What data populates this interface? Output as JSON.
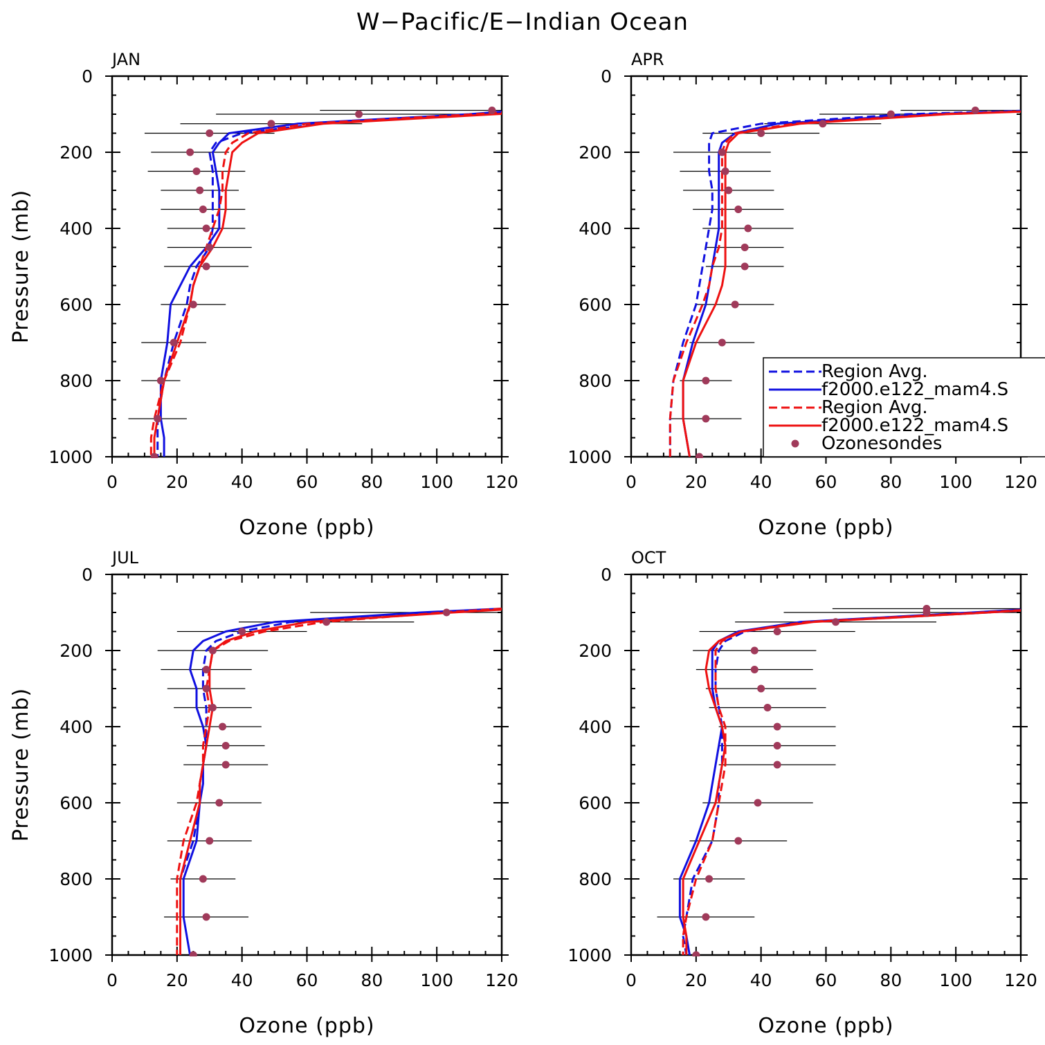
{
  "figure_title": "W−Pacific/E−Indian Ocean",
  "colors": {
    "blue": "#1010e0",
    "red": "#ee1111",
    "obs": "#a03a5a",
    "axis": "#000000"
  },
  "legend": [
    {
      "label": "Region Avg.",
      "color": "#1010e0",
      "style": "dashed"
    },
    {
      "label": "f2000.e122_mam4.S",
      "color": "#1010e0",
      "style": "solid"
    },
    {
      "label": "Region Avg.",
      "color": "#ee1111",
      "style": "dashed"
    },
    {
      "label": "f2000.e122_mam4.S",
      "color": "#ee1111",
      "style": "solid"
    },
    {
      "label": "Ozonesondes",
      "color": "#a03a5a",
      "style": "marker"
    }
  ],
  "chart_data": [
    {
      "type": "line",
      "title": "JAN",
      "xlabel": "Ozone (ppb)",
      "ylabel": "Pressure (mb)",
      "xlim": [
        0,
        120
      ],
      "ylim": [
        0,
        1000
      ],
      "y_reversed": true,
      "xticks": [
        "0",
        "20",
        "40",
        "60",
        "80",
        "100",
        "120"
      ],
      "yticks": [
        "0",
        "200",
        "400",
        "600",
        "800",
        "1000"
      ],
      "pressure": [
        90,
        100,
        125,
        150,
        175,
        200,
        250,
        300,
        350,
        400,
        450,
        500,
        550,
        600,
        700,
        800,
        900,
        950,
        1000
      ],
      "series": [
        {
          "name": "Region Avg.",
          "color": "#1010e0",
          "style": "dashed",
          "values": [
            135,
            115,
            64,
            40,
            32,
            30,
            31,
            31,
            31,
            31,
            30,
            26,
            24,
            23,
            19,
            16,
            14,
            14,
            14
          ]
        },
        {
          "name": "f2000.e122_mam4.S",
          "color": "#1010e0",
          "style": "solid",
          "values": [
            125,
            110,
            57,
            36,
            33,
            31,
            32,
            33,
            33,
            33,
            29,
            24,
            21,
            18,
            17,
            15,
            15,
            16,
            16
          ]
        },
        {
          "name": "Region Avg.",
          "color": "#ee1111",
          "style": "dashed",
          "values": [
            130,
            112,
            60,
            42,
            37,
            35,
            34,
            34,
            33,
            31,
            29,
            27,
            25,
            24,
            21,
            16,
            13,
            12,
            12
          ]
        },
        {
          "name": "f2000.e122_mam4.S",
          "color": "#ee1111",
          "style": "solid",
          "values": [
            140,
            118,
            65,
            45,
            40,
            37,
            36,
            35,
            35,
            34,
            31,
            27,
            25,
            24,
            20,
            16,
            14,
            13,
            13
          ]
        }
      ],
      "obs": {
        "name": "Ozonesondes",
        "pressure": [
          90,
          100,
          125,
          150,
          200,
          250,
          300,
          350,
          400,
          450,
          500,
          600,
          700,
          800,
          900,
          1000
        ],
        "values": [
          117,
          76,
          49,
          30,
          24,
          26,
          27,
          28,
          29,
          30,
          29,
          25,
          19,
          15,
          14,
          13
        ],
        "err": [
          53,
          44,
          28,
          20,
          12,
          15,
          12,
          13,
          12,
          13,
          13,
          10,
          10,
          6,
          9,
          10
        ]
      }
    },
    {
      "type": "line",
      "title": "APR",
      "xlabel": "Ozone (ppb)",
      "ylabel": "",
      "xlim": [
        0,
        120
      ],
      "ylim": [
        0,
        1000
      ],
      "y_reversed": true,
      "xticks": [
        "0",
        "20",
        "40",
        "60",
        "80",
        "100",
        "120"
      ],
      "yticks": [
        "0",
        "200",
        "400",
        "600",
        "800",
        "1000"
      ],
      "pressure": [
        90,
        100,
        125,
        150,
        175,
        200,
        250,
        300,
        350,
        400,
        450,
        500,
        550,
        600,
        700,
        800,
        900,
        950,
        1000
      ],
      "series": [
        {
          "name": "Region Avg.",
          "color": "#1010e0",
          "style": "dashed",
          "values": [
            125,
            85,
            40,
            25,
            24,
            24,
            24,
            25,
            25,
            24,
            23,
            22,
            21,
            20,
            16,
            13,
            12,
            12,
            12
          ]
        },
        {
          "name": "f2000.e122_mam4.S",
          "color": "#1010e0",
          "style": "solid",
          "values": [
            128,
            92,
            45,
            32,
            28,
            27,
            27,
            27,
            27,
            27,
            26,
            25,
            24,
            23,
            19,
            16,
            16,
            17,
            18
          ]
        },
        {
          "name": "Region Avg.",
          "color": "#ee1111",
          "style": "dashed",
          "values": [
            130,
            95,
            50,
            32,
            29,
            28,
            28,
            28,
            28,
            28,
            27,
            25,
            24,
            22,
            17,
            13,
            12,
            12,
            12
          ]
        },
        {
          "name": "f2000.e122_mam4.S",
          "color": "#ee1111",
          "style": "solid",
          "values": [
            132,
            97,
            52,
            33,
            30,
            29,
            29,
            29,
            29,
            29,
            29,
            29,
            28,
            26,
            20,
            16,
            16,
            17,
            18
          ]
        }
      ],
      "obs": {
        "name": "Ozonesondes",
        "pressure": [
          90,
          100,
          125,
          150,
          200,
          250,
          300,
          350,
          400,
          450,
          500,
          600,
          700,
          800,
          900,
          1000
        ],
        "values": [
          106,
          80,
          59,
          40,
          28,
          29,
          30,
          33,
          36,
          35,
          35,
          32,
          28,
          23,
          23,
          21
        ],
        "err": [
          23,
          22,
          18,
          18,
          15,
          14,
          14,
          14,
          14,
          12,
          12,
          12,
          10,
          8,
          11,
          13
        ]
      }
    },
    {
      "type": "line",
      "title": "JUL",
      "xlabel": "Ozone (ppb)",
      "ylabel": "Pressure (mb)",
      "xlim": [
        0,
        120
      ],
      "ylim": [
        0,
        1000
      ],
      "y_reversed": true,
      "xticks": [
        "0",
        "20",
        "40",
        "60",
        "80",
        "100",
        "120"
      ],
      "yticks": [
        "0",
        "200",
        "400",
        "600",
        "800",
        "1000"
      ],
      "pressure": [
        90,
        100,
        125,
        150,
        175,
        200,
        250,
        300,
        350,
        400,
        450,
        500,
        550,
        600,
        700,
        800,
        900,
        950,
        1000
      ],
      "series": [
        {
          "name": "Region Avg.",
          "color": "#1010e0",
          "style": "dashed",
          "values": [
            125,
            100,
            55,
            40,
            32,
            29,
            28,
            28,
            29,
            29,
            29,
            28,
            27,
            27,
            25,
            21,
            21,
            21,
            21
          ]
        },
        {
          "name": "f2000.e122_mam4.S",
          "color": "#1010e0",
          "style": "solid",
          "values": [
            120,
            95,
            50,
            35,
            28,
            25,
            24,
            26,
            26,
            28,
            29,
            28,
            28,
            27,
            26,
            22,
            22,
            23,
            24
          ]
        },
        {
          "name": "Region Avg.",
          "color": "#ee1111",
          "style": "dashed",
          "values": [
            120,
            102,
            65,
            47,
            36,
            31,
            30,
            29,
            30,
            29,
            28,
            28,
            27,
            26,
            22,
            20,
            20,
            20,
            20
          ]
        },
        {
          "name": "f2000.e122_mam4.S",
          "color": "#ee1111",
          "style": "solid",
          "values": [
            125,
            105,
            60,
            44,
            35,
            31,
            30,
            30,
            31,
            30,
            29,
            28,
            27,
            27,
            24,
            21,
            21,
            21,
            21
          ]
        }
      ],
      "obs": {
        "name": "Ozonesondes",
        "pressure": [
          100,
          125,
          150,
          200,
          250,
          300,
          350,
          400,
          450,
          500,
          600,
          700,
          800,
          900,
          1000
        ],
        "values": [
          103,
          66,
          40,
          31,
          29,
          29,
          31,
          34,
          35,
          35,
          33,
          30,
          28,
          29,
          25
        ],
        "err": [
          42,
          27,
          20,
          17,
          14,
          12,
          12,
          12,
          12,
          13,
          13,
          13,
          10,
          13,
          13
        ]
      }
    },
    {
      "type": "line",
      "title": "OCT",
      "xlabel": "Ozone (ppb)",
      "ylabel": "",
      "xlim": [
        0,
        120
      ],
      "ylim": [
        0,
        1000
      ],
      "y_reversed": true,
      "xticks": [
        "0",
        "20",
        "40",
        "60",
        "80",
        "100",
        "120"
      ],
      "yticks": [
        "0",
        "200",
        "400",
        "600",
        "800",
        "1000"
      ],
      "pressure": [
        90,
        100,
        125,
        150,
        175,
        200,
        250,
        300,
        350,
        400,
        450,
        500,
        550,
        600,
        700,
        800,
        900,
        950,
        1000
      ],
      "series": [
        {
          "name": "Region Avg.",
          "color": "#1010e0",
          "style": "dashed",
          "values": [
            130,
            110,
            55,
            35,
            29,
            27,
            26,
            26,
            27,
            28,
            28,
            28,
            27,
            27,
            25,
            19,
            17,
            16,
            17
          ]
        },
        {
          "name": "f2000.e122_mam4.S",
          "color": "#1010e0",
          "style": "solid",
          "values": [
            125,
            105,
            52,
            33,
            27,
            25,
            25,
            25,
            26,
            28,
            27,
            26,
            25,
            24,
            20,
            15,
            15,
            17,
            18
          ]
        },
        {
          "name": "Region Avg.",
          "color": "#ee1111",
          "style": "dashed",
          "values": [
            128,
            108,
            54,
            34,
            28,
            26,
            26,
            26,
            27,
            29,
            29,
            29,
            28,
            27,
            25,
            20,
            17,
            16,
            16
          ]
        },
        {
          "name": "f2000.e122_mam4.S",
          "color": "#ee1111",
          "style": "solid",
          "values": [
            130,
            110,
            56,
            34,
            27,
            24,
            23,
            24,
            26,
            28,
            29,
            28,
            27,
            26,
            21,
            16,
            16,
            17,
            17
          ]
        }
      ],
      "obs": {
        "name": "Ozonesondes",
        "pressure": [
          90,
          100,
          125,
          150,
          200,
          250,
          300,
          350,
          400,
          450,
          500,
          600,
          700,
          800,
          900,
          1000
        ],
        "values": [
          91,
          91,
          63,
          45,
          38,
          38,
          40,
          42,
          45,
          45,
          45,
          39,
          33,
          24,
          23,
          20
        ],
        "err": [
          29,
          44,
          31,
          24,
          19,
          18,
          17,
          18,
          18,
          18,
          18,
          17,
          15,
          11,
          15,
          15
        ]
      }
    }
  ]
}
